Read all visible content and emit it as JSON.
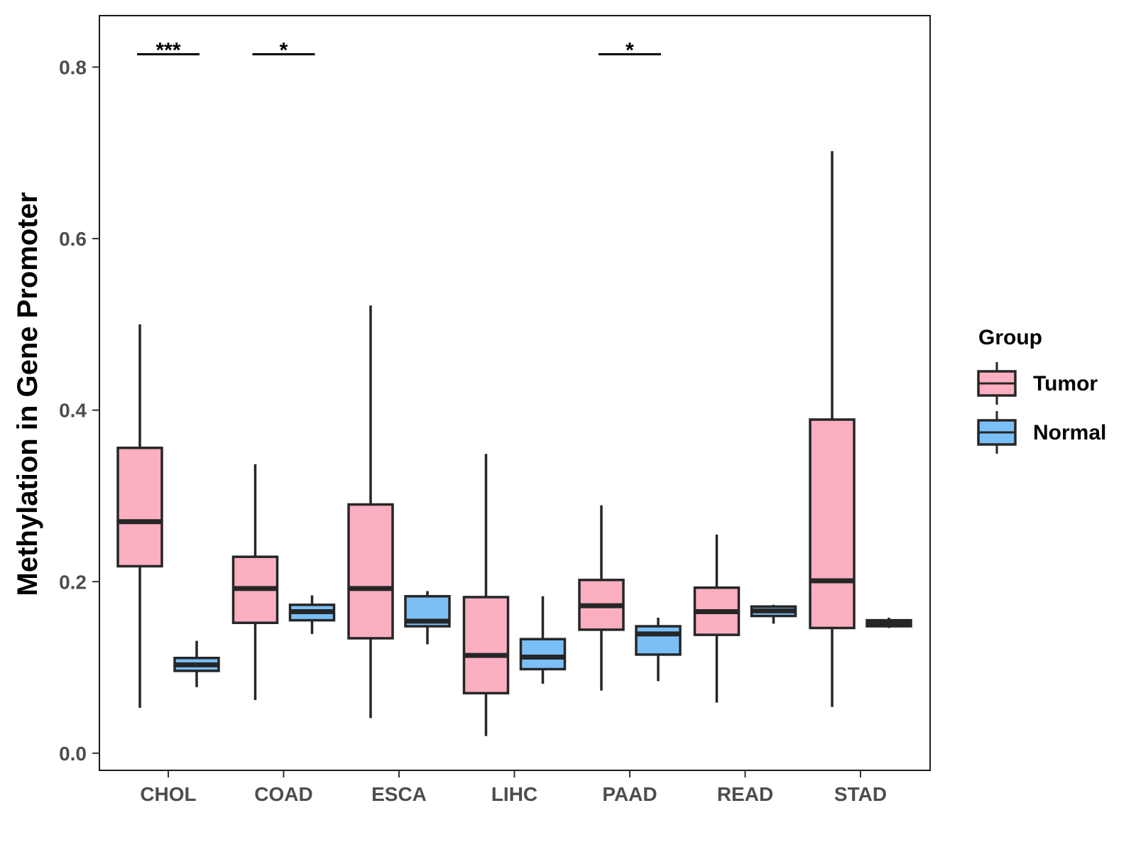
{
  "chart_data": {
    "type": "boxplot",
    "title": "",
    "xlabel": "",
    "ylabel": "Methylation in Gene Promoter",
    "ylim": [
      -0.02,
      0.86
    ],
    "yticks": [
      0.0,
      0.2,
      0.4,
      0.6,
      0.8
    ],
    "ytick_labels": [
      "0.0",
      "0.2",
      "0.4",
      "0.6",
      "0.8"
    ],
    "categories": [
      "CHOL",
      "COAD",
      "ESCA",
      "LIHC",
      "PAAD",
      "READ",
      "STAD"
    ],
    "legend": {
      "title": "Group",
      "position": "right",
      "entries": [
        {
          "name": "Tumor",
          "color": "#fbafc1"
        },
        {
          "name": "Normal",
          "color": "#7bbff7"
        }
      ]
    },
    "series": [
      {
        "name": "Tumor",
        "color": "#fbafc1",
        "boxes": [
          {
            "category": "CHOL",
            "min": 0.053,
            "q1": 0.218,
            "median": 0.27,
            "q3": 0.356,
            "max": 0.5
          },
          {
            "category": "COAD",
            "min": 0.062,
            "q1": 0.152,
            "median": 0.192,
            "q3": 0.229,
            "max": 0.337
          },
          {
            "category": "ESCA",
            "min": 0.041,
            "q1": 0.134,
            "median": 0.192,
            "q3": 0.29,
            "max": 0.522
          },
          {
            "category": "LIHC",
            "min": 0.02,
            "q1": 0.07,
            "median": 0.114,
            "q3": 0.182,
            "max": 0.349
          },
          {
            "category": "PAAD",
            "min": 0.073,
            "q1": 0.144,
            "median": 0.172,
            "q3": 0.202,
            "max": 0.289
          },
          {
            "category": "READ",
            "min": 0.059,
            "q1": 0.138,
            "median": 0.165,
            "q3": 0.193,
            "max": 0.255
          },
          {
            "category": "STAD",
            "min": 0.054,
            "q1": 0.146,
            "median": 0.201,
            "q3": 0.389,
            "max": 0.702
          }
        ]
      },
      {
        "name": "Normal",
        "color": "#7bbff7",
        "boxes": [
          {
            "category": "CHOL",
            "min": 0.077,
            "q1": 0.096,
            "median": 0.103,
            "q3": 0.111,
            "max": 0.131
          },
          {
            "category": "COAD",
            "min": 0.139,
            "q1": 0.155,
            "median": 0.165,
            "q3": 0.173,
            "max": 0.184
          },
          {
            "category": "ESCA",
            "min": 0.127,
            "q1": 0.148,
            "median": 0.154,
            "q3": 0.183,
            "max": 0.189
          },
          {
            "category": "LIHC",
            "min": 0.081,
            "q1": 0.098,
            "median": 0.112,
            "q3": 0.133,
            "max": 0.183
          },
          {
            "category": "PAAD",
            "min": 0.084,
            "q1": 0.115,
            "median": 0.139,
            "q3": 0.148,
            "max": 0.158
          },
          {
            "category": "READ",
            "min": 0.151,
            "q1": 0.16,
            "median": 0.166,
            "q3": 0.171,
            "max": 0.173
          },
          {
            "category": "STAD",
            "min": 0.146,
            "q1": 0.148,
            "median": 0.152,
            "q3": 0.155,
            "max": 0.158
          }
        ]
      }
    ],
    "annotations": [
      {
        "category": "CHOL",
        "label": "***",
        "y": 0.815
      },
      {
        "category": "COAD",
        "label": "*",
        "y": 0.815
      },
      {
        "category": "PAAD",
        "label": "*",
        "y": 0.815
      }
    ]
  }
}
